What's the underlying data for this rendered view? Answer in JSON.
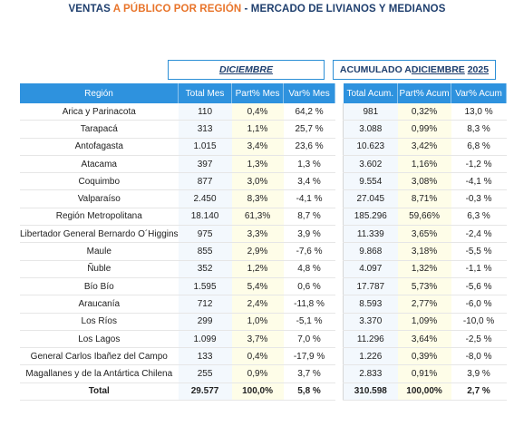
{
  "title": {
    "part1": "VENTAS ",
    "accent": "A PÚBLICO POR REGIÓN",
    "part2": " - MERCADO DE LIVIANOS Y MEDIANOS"
  },
  "groups": {
    "december": "DICIEMBRE",
    "accum_prefix": "ACUMULADO A ",
    "accum_month": "DICIEMBRE",
    "accum_year": "2025"
  },
  "columns": [
    "Región",
    "Total Mes",
    "Part% Mes",
    "Var% Mes",
    "Total Acum.",
    "Part% Acum",
    "Var% Acum"
  ],
  "rows": [
    [
      "Arica y Parinacota",
      "110",
      "0,4%",
      "64,2 %",
      "981",
      "0,32%",
      "13,0 %"
    ],
    [
      "Tarapacá",
      "313",
      "1,1%",
      "25,7 %",
      "3.088",
      "0,99%",
      "8,3 %"
    ],
    [
      "Antofagasta",
      "1.015",
      "3,4%",
      "23,6 %",
      "10.623",
      "3,42%",
      "6,8 %"
    ],
    [
      "Atacama",
      "397",
      "1,3%",
      "1,3 %",
      "3.602",
      "1,16%",
      "-1,2 %"
    ],
    [
      "Coquimbo",
      "877",
      "3,0%",
      "3,4 %",
      "9.554",
      "3,08%",
      "-4,1 %"
    ],
    [
      "Valparaíso",
      "2.450",
      "8,3%",
      "-4,1 %",
      "27.045",
      "8,71%",
      "-0,3 %"
    ],
    [
      "Región Metropolitana",
      "18.140",
      "61,3%",
      "8,7 %",
      "185.296",
      "59,66%",
      "6,3 %"
    ],
    [
      "Libertador General Bernardo O´Higgins",
      "975",
      "3,3%",
      "3,9 %",
      "11.339",
      "3,65%",
      "-2,4 %"
    ],
    [
      "Maule",
      "855",
      "2,9%",
      "-7,6 %",
      "9.868",
      "3,18%",
      "-5,5 %"
    ],
    [
      "Ñuble",
      "352",
      "1,2%",
      "4,8 %",
      "4.097",
      "1,32%",
      "-1,1 %"
    ],
    [
      "Bío Bío",
      "1.595",
      "5,4%",
      "0,6 %",
      "17.787",
      "5,73%",
      "-5,6 %"
    ],
    [
      "Araucanía",
      "712",
      "2,4%",
      "-11,8 %",
      "8.593",
      "2,77%",
      "-6,0 %"
    ],
    [
      "Los Ríos",
      "299",
      "1,0%",
      "-5,1 %",
      "3.370",
      "1,09%",
      "-10,0 %"
    ],
    [
      "Los Lagos",
      "1.099",
      "3,7%",
      "7,0 %",
      "11.296",
      "3,64%",
      "-2,5 %"
    ],
    [
      "General Carlos Ibañez del Campo",
      "133",
      "0,4%",
      "-17,9 %",
      "1.226",
      "0,39%",
      "-8,0 %"
    ],
    [
      "Magallanes y de la Antártica Chilena",
      "255",
      "0,9%",
      "3,7 %",
      "2.833",
      "0,91%",
      "3,9 %"
    ]
  ],
  "total": [
    "Total",
    "29.577",
    "100,0%",
    "5,8 %",
    "310.598",
    "100,00%",
    "2,7 %"
  ]
}
